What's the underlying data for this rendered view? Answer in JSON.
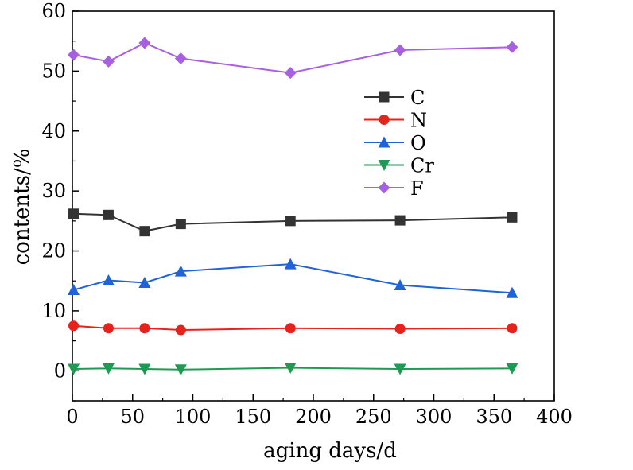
{
  "chart_data": {
    "type": "line",
    "xlabel": "aging days/d",
    "ylabel": "contents/%",
    "xlim": [
      0,
      400
    ],
    "ylim": [
      -5,
      60
    ],
    "xticks": [
      0,
      50,
      100,
      150,
      200,
      250,
      300,
      350,
      400
    ],
    "yticks": [
      0,
      10,
      20,
      30,
      40,
      50,
      60
    ],
    "grid": false,
    "legend": "upper-middle-right",
    "x": [
      1,
      30,
      60,
      90,
      181,
      272,
      365
    ],
    "series": [
      {
        "name": "C",
        "color": "#333333",
        "marker": "square",
        "values": [
          26.2,
          26.0,
          23.3,
          24.5,
          25.0,
          25.1,
          25.6
        ]
      },
      {
        "name": "N",
        "color": "#e8211d",
        "marker": "circle",
        "values": [
          7.5,
          7.1,
          7.1,
          6.8,
          7.1,
          7.0,
          7.1
        ]
      },
      {
        "name": "O",
        "color": "#1f63d6",
        "marker": "triangle-up",
        "values": [
          13.5,
          15.1,
          14.7,
          16.6,
          17.8,
          14.3,
          13.0
        ]
      },
      {
        "name": "Cr",
        "color": "#1f9a52",
        "marker": "triangle-down",
        "values": [
          0.3,
          0.4,
          0.3,
          0.2,
          0.5,
          0.3,
          0.4
        ]
      },
      {
        "name": "F",
        "color": "#a860e0",
        "marker": "diamond",
        "values": [
          52.7,
          51.6,
          54.7,
          52.1,
          49.7,
          53.5,
          54.0
        ]
      }
    ]
  }
}
